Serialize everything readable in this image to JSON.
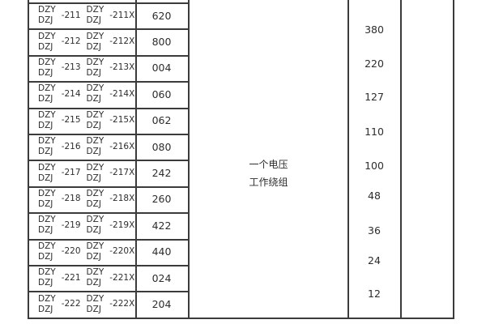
{
  "table": {
    "rows": [
      {
        "prefix_top": "DZY",
        "prefix_bottom": "DZJ",
        "suffix": "-211",
        "suffix_x": "-211X",
        "code": "620"
      },
      {
        "prefix_top": "DZY",
        "prefix_bottom": "DZJ",
        "suffix": "-212",
        "suffix_x": "-212X",
        "code": "800"
      },
      {
        "prefix_top": "DZY",
        "prefix_bottom": "DZJ",
        "suffix": "-213",
        "suffix_x": "-213X",
        "code": "004"
      },
      {
        "prefix_top": "DZY",
        "prefix_bottom": "DZJ",
        "suffix": "-214",
        "suffix_x": "-214X",
        "code": "060"
      },
      {
        "prefix_top": "DZY",
        "prefix_bottom": "DZJ",
        "suffix": "-215",
        "suffix_x": "-215X",
        "code": "062"
      },
      {
        "prefix_top": "DZY",
        "prefix_bottom": "DZJ",
        "suffix": "-216",
        "suffix_x": "-216X",
        "code": "080"
      },
      {
        "prefix_top": "DZY",
        "prefix_bottom": "DZJ",
        "suffix": "-217",
        "suffix_x": "-217X",
        "code": "242"
      },
      {
        "prefix_top": "DZY",
        "prefix_bottom": "DZJ",
        "suffix": "-218",
        "suffix_x": "-218X",
        "code": "260"
      },
      {
        "prefix_top": "DZY",
        "prefix_bottom": "DZJ",
        "suffix": "-219",
        "suffix_x": "-219X",
        "code": "422"
      },
      {
        "prefix_top": "DZY",
        "prefix_bottom": "DZJ",
        "suffix": "-220",
        "suffix_x": "-220X",
        "code": "440"
      },
      {
        "prefix_top": "DZY",
        "prefix_bottom": "DZJ",
        "suffix": "-221",
        "suffix_x": "-221X",
        "code": "024"
      },
      {
        "prefix_top": "DZY",
        "prefix_bottom": "DZJ",
        "suffix": "-222",
        "suffix_x": "-222X",
        "code": "204"
      }
    ],
    "winding_label": {
      "line1": "一个电压",
      "line2": "工作绕组"
    },
    "voltages": [
      "380",
      "220",
      "127",
      "110",
      "100",
      "48",
      "36",
      "24",
      "12"
    ]
  },
  "colors": {
    "border": "#3b3b3b",
    "text": "#2d2d2d",
    "background": "#ffffff"
  }
}
